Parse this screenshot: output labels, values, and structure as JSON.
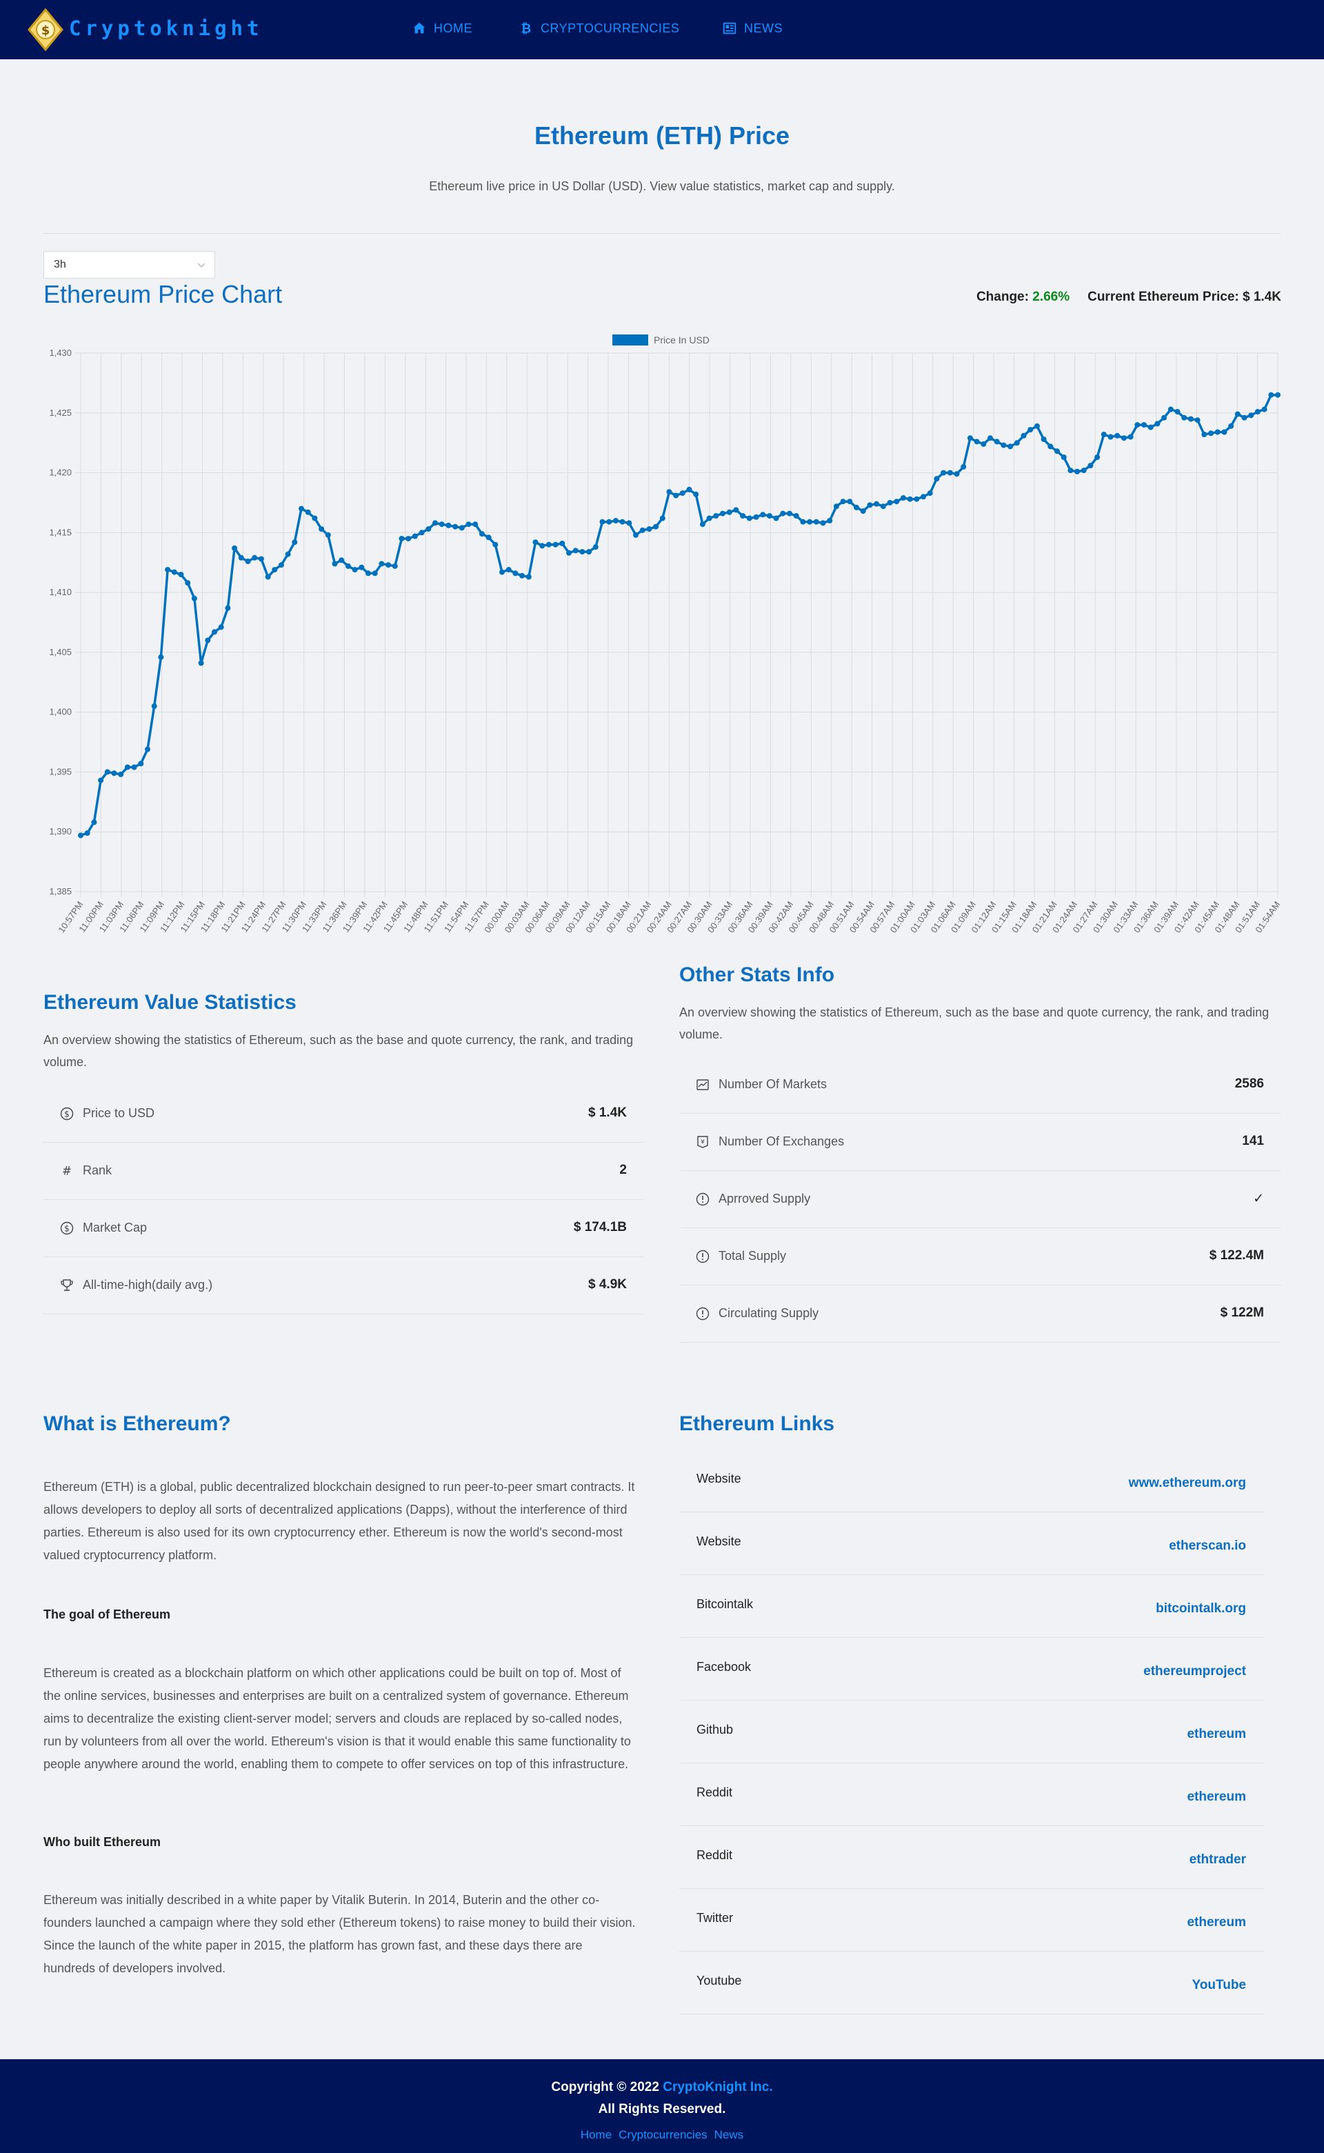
{
  "nav": {
    "brand": "Cryptoknight",
    "items": [
      {
        "label": "HOME",
        "icon": "home-icon"
      },
      {
        "label": "CRYPTOCURRENCIES",
        "icon": "bitcoin-icon"
      },
      {
        "label": "NEWS",
        "icon": "news-icon"
      }
    ]
  },
  "page": {
    "title": "Ethereum (ETH) Price",
    "subtitle": "Ethereum live price in US Dollar (USD). View value statistics, market cap and supply."
  },
  "timeframe": {
    "selected": "3h"
  },
  "chart_header": {
    "title": "Ethereum Price Chart",
    "change_label": "Change:",
    "change_value": "2.66%",
    "current_label": "Current Ethereum Price:",
    "current_value": "$ 1.4K"
  },
  "colors": {
    "accent": "#0f6ebf",
    "navbar": "#001559",
    "link": "#1890ff",
    "positive": "#0a8a1a"
  },
  "chart_data": {
    "type": "line",
    "legend": "Price In USD",
    "legend_position": "top",
    "grid": true,
    "ylim": [
      1385,
      1430
    ],
    "y_ticks": [
      "1,385",
      "1,390",
      "1,395",
      "1,400",
      "1,405",
      "1,410",
      "1,415",
      "1,420",
      "1,425",
      "1,430"
    ],
    "x_tick_labels": [
      "10:57PM",
      "11:00PM",
      "11:03PM",
      "11:06PM",
      "11:09PM",
      "11:12PM",
      "11:15PM",
      "11:18PM",
      "11:21PM",
      "11:24PM",
      "11:27PM",
      "11:30PM",
      "11:33PM",
      "11:36PM",
      "11:39PM",
      "11:42PM",
      "11:45PM",
      "11:48PM",
      "11:51PM",
      "11:54PM",
      "11:57PM",
      "00:00AM",
      "00:03AM",
      "00:06AM",
      "00:09AM",
      "00:12AM",
      "00:15AM",
      "00:18AM",
      "00:21AM",
      "00:24AM",
      "00:27AM",
      "00:30AM",
      "00:33AM",
      "00:36AM",
      "00:39AM",
      "00:42AM",
      "00:45AM",
      "00:48AM",
      "00:51AM",
      "00:54AM",
      "00:57AM",
      "01:00AM",
      "01:03AM",
      "01:06AM",
      "01:09AM",
      "01:12AM",
      "01:15AM",
      "01:18AM",
      "01:21AM",
      "01:24AM",
      "01:27AM",
      "01:30AM",
      "01:33AM",
      "01:36AM",
      "01:39AM",
      "01:42AM",
      "01:45AM",
      "01:48AM",
      "01:51AM",
      "01:54AM"
    ],
    "values": [
      1389.7,
      1389.9,
      1390.8,
      1394.3,
      1395.0,
      1394.9,
      1394.8,
      1395.4,
      1395.4,
      1395.7,
      1396.9,
      1400.5,
      1404.6,
      1411.9,
      1411.7,
      1411.5,
      1410.8,
      1409.5,
      1404.1,
      1406.0,
      1406.7,
      1407.1,
      1408.7,
      1413.7,
      1412.9,
      1412.6,
      1412.9,
      1412.8,
      1411.3,
      1411.9,
      1412.3,
      1413.2,
      1414.2,
      1417.0,
      1416.7,
      1416.2,
      1415.3,
      1414.8,
      1412.4,
      1412.7,
      1412.2,
      1411.9,
      1412.1,
      1411.6,
      1411.6,
      1412.4,
      1412.3,
      1412.2,
      1414.5,
      1414.5,
      1414.7,
      1415.0,
      1415.3,
      1415.8,
      1415.7,
      1415.6,
      1415.5,
      1415.4,
      1415.7,
      1415.7,
      1414.9,
      1414.6,
      1414.0,
      1411.7,
      1411.9,
      1411.6,
      1411.4,
      1411.3,
      1414.2,
      1413.9,
      1414.0,
      1414.0,
      1414.1,
      1413.3,
      1413.5,
      1413.4,
      1413.4,
      1413.8,
      1415.9,
      1415.9,
      1416.0,
      1415.9,
      1415.8,
      1414.8,
      1415.2,
      1415.3,
      1415.5,
      1416.2,
      1418.4,
      1418.1,
      1418.3,
      1418.6,
      1418.2,
      1415.7,
      1416.2,
      1416.4,
      1416.6,
      1416.7,
      1416.9,
      1416.4,
      1416.2,
      1416.3,
      1416.5,
      1416.4,
      1416.2,
      1416.6,
      1416.6,
      1416.4,
      1415.9,
      1415.9,
      1415.9,
      1415.8,
      1416.0,
      1417.2,
      1417.6,
      1417.6,
      1417.1,
      1416.8,
      1417.3,
      1417.4,
      1417.2,
      1417.5,
      1417.6,
      1417.9,
      1417.8,
      1417.8,
      1418.0,
      1418.3,
      1419.5,
      1420.0,
      1420.0,
      1419.9,
      1420.5,
      1422.9,
      1422.6,
      1422.4,
      1422.9,
      1422.6,
      1422.3,
      1422.2,
      1422.5,
      1423.1,
      1423.6,
      1423.9,
      1422.8,
      1422.2,
      1421.8,
      1421.3,
      1420.2,
      1420.1,
      1420.2,
      1420.6,
      1421.3,
      1423.2,
      1423.0,
      1423.1,
      1422.9,
      1423.0,
      1424.0,
      1424.0,
      1423.8,
      1424.1,
      1424.6,
      1425.3,
      1425.1,
      1424.6,
      1424.5,
      1424.4,
      1423.2,
      1423.3,
      1423.4,
      1423.4,
      1423.9,
      1424.9,
      1424.6,
      1424.8,
      1425.1,
      1425.3,
      1426.5,
      1426.5
    ]
  },
  "value_stats": {
    "title": "Ethereum Value Statistics",
    "description": "An overview showing the statistics of Ethereum, such as the base and quote currency, the rank, and trading volume.",
    "rows": [
      {
        "icon": "dollar-circle-icon",
        "label": "Price to USD",
        "value": "$ 1.4K"
      },
      {
        "icon": "hash-icon",
        "label": "Rank",
        "value": "2"
      },
      {
        "icon": "dollar-circle-icon",
        "label": "Market Cap",
        "value": "$ 174.1B"
      },
      {
        "icon": "trophy-icon",
        "label": "All-time-high(daily avg.)",
        "value": "$ 4.9K"
      }
    ]
  },
  "other_stats": {
    "title": "Other Stats Info",
    "description": "An overview showing the statistics of Ethereum, such as the base and quote currency, the rank, and trading volume.",
    "rows": [
      {
        "icon": "fund-icon",
        "label": "Number Of Markets",
        "value": "2586"
      },
      {
        "icon": "money-collect-icon",
        "label": "Number Of Exchanges",
        "value": "141"
      },
      {
        "icon": "exclamation-circle-icon",
        "label": "Aprroved Supply",
        "value": "✓"
      },
      {
        "icon": "exclamation-circle-icon",
        "label": "Total Supply",
        "value": "$ 122.4M"
      },
      {
        "icon": "exclamation-circle-icon",
        "label": "Circulating Supply",
        "value": "$ 122M"
      }
    ]
  },
  "about": {
    "title": "What is Ethereum?",
    "intro": "Ethereum (ETH) is a global, public decentralized blockchain designed to run peer-to-peer smart contracts. It allows developers to deploy all sorts of decentralized applications (Dapps), without the interference of third parties. Ethereum is also used for its own cryptocurrency ether. Ethereum is now the world's second-most valued cryptocurrency platform.",
    "goal_heading": "The goal of Ethereum",
    "goal_text": "Ethereum is created as a blockchain platform on which other applications could be built on top of. Most of the online services, businesses and enterprises are built on a centralized system of governance. Ethereum aims to decentralize the existing client-server model; servers and clouds are replaced by so-called nodes, run by volunteers from all over the world. Ethereum's vision is that it would enable this same functionality to people anywhere around the world, enabling them to compete to offer services on top of this infrastructure.",
    "who_heading": "Who built Ethereum",
    "who_text": "Ethereum was initially described in a white paper by Vitalik Buterin. In 2014, Buterin and the other co-founders launched a campaign where they sold ether (Ethereum tokens) to raise money to build their vision. Since the launch of the white paper in 2015, the platform has grown fast, and these days there are hundreds of developers involved."
  },
  "links": {
    "title": "Ethereum Links",
    "rows": [
      {
        "label": "Website",
        "value": "www.ethereum.org"
      },
      {
        "label": "Website",
        "value": "etherscan.io"
      },
      {
        "label": "Bitcointalk",
        "value": "bitcointalk.org"
      },
      {
        "label": "Facebook",
        "value": "ethereumproject"
      },
      {
        "label": "Github",
        "value": "ethereum"
      },
      {
        "label": "Reddit",
        "value": "ethereum"
      },
      {
        "label": "Reddit",
        "value": "ethtrader"
      },
      {
        "label": "Twitter",
        "value": "ethereum"
      },
      {
        "label": "Youtube",
        "value": "YouTube"
      }
    ]
  },
  "footer": {
    "copyright_prefix": "Copyright © 2022",
    "brand": "CryptoKnight Inc.",
    "rights": "All Rights Reserved.",
    "links": [
      "Home",
      "Cryptocurrencies",
      "News"
    ]
  }
}
